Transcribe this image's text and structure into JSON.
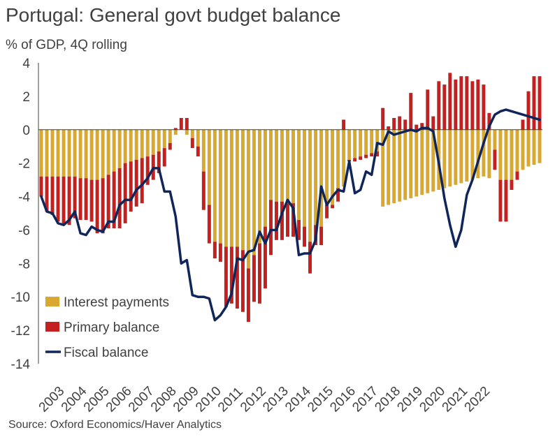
{
  "title": "Portugal: General govt budget balance",
  "subtitle": "% of GDP, 4Q rolling",
  "source": "Source: Oxford Economics/Haver Analytics",
  "colors": {
    "interest": "#D9A82E",
    "primary": "#C4201F",
    "fiscal": "#10265B",
    "axis": "#404040"
  },
  "chart_data": {
    "type": "bar",
    "stacked": true,
    "title": "Portugal: General govt budget balance",
    "ylabel": "% of GDP, 4Q rolling",
    "xlabel": "",
    "ylim": [
      -14,
      4
    ],
    "yticks": [
      4,
      2,
      0,
      -2,
      -4,
      -6,
      -8,
      -10,
      -12,
      -14
    ],
    "x_tick_labels": [
      "2003",
      "2004",
      "2005",
      "2006",
      "2007",
      "2008",
      "2009",
      "2010",
      "2011",
      "2012",
      "2013",
      "2014",
      "2015",
      "2016",
      "2017",
      "2018",
      "2019",
      "2020",
      "2021",
      "2022"
    ],
    "x_start_year": 2003,
    "quarters_per_year": 4,
    "legend": {
      "placement": "bottom-left",
      "entries": [
        "Interest payments",
        "Primary balance",
        "Fiscal balance"
      ]
    },
    "series": [
      {
        "name": "Interest payments",
        "kind": "bar",
        "values": [
          -2.8,
          -2.8,
          -2.8,
          -2.8,
          -2.8,
          -2.8,
          -2.8,
          -2.9,
          -2.9,
          -3.0,
          -3.0,
          -2.9,
          -2.7,
          -2.5,
          -2.3,
          -2.0,
          -1.9,
          -1.8,
          -1.7,
          -1.6,
          -1.5,
          -1.3,
          -1.1,
          -0.8,
          -0.3,
          0,
          -0.3,
          -0.5,
          -1.0,
          -2.5,
          -4.5,
          -6.7,
          -6.8,
          -7.0,
          -7.0,
          -7.0,
          -7.2,
          -8.3,
          -7.5,
          -6.8,
          -5.8,
          -4.2,
          -4.3,
          -4.3,
          -4.4,
          -4.4,
          -5.4,
          -5.8,
          -6.7,
          -5.7,
          -5.8,
          -4.5,
          -4.5,
          -3.5,
          -3.4,
          -1.8,
          -1.7,
          -1.6,
          -1.5,
          -1.4,
          -1.3,
          -4.6,
          -4.5,
          -4.4,
          -4.3,
          -4.2,
          -4.1,
          -4.0,
          -3.9,
          -3.8,
          -3.7,
          -3.6,
          -3.5,
          -3.4,
          -3.3,
          -3.2,
          -3.1,
          -3.0,
          -2.9,
          -2.8,
          -2.9,
          -1.2,
          -3.0,
          -3.0,
          -3.0,
          -2.5,
          -2.4,
          -2.2,
          -2.1,
          -2.0
        ]
      },
      {
        "name": "Primary balance",
        "kind": "bar",
        "values": [
          -1.2,
          -2.1,
          -2.3,
          -2.7,
          -2.9,
          -2.9,
          -2.5,
          -2.5,
          -2.5,
          -2.5,
          -3.2,
          -3.3,
          -3.2,
          -3.4,
          -3.6,
          -3.6,
          -3.0,
          -2.8,
          -2.7,
          -1.7,
          -1.5,
          -1.3,
          -1.1,
          -0.4,
          0.1,
          0.7,
          0.7,
          -0.6,
          -0.6,
          -2.3,
          -2.3,
          -1.0,
          -1.1,
          -3.6,
          -3.4,
          -3.7,
          -3.7,
          -3.2,
          -2.8,
          -3.6,
          -3.7,
          -3.3,
          -2.3,
          -2.3,
          -2.0,
          -2.0,
          -1.2,
          -1.2,
          -1.9,
          -1.2,
          -1.1,
          -0.8,
          -0.2,
          -0.8,
          0.6,
          -0.1,
          -0.2,
          -0.2,
          -0.2,
          -0.2,
          -0.3,
          1.3,
          0.2,
          0.7,
          0.8,
          0.6,
          2.2,
          0.3,
          0.4,
          2.4,
          0.8,
          2.9,
          2.7,
          3.4,
          3.0,
          3.2,
          3.2,
          2.9,
          3.0,
          2.7,
          1.0,
          -1.2,
          -2.5,
          -2.5,
          -0.6,
          -0.5,
          0.6,
          2.3,
          3.2,
          3.2
        ]
      },
      {
        "name": "Fiscal balance",
        "kind": "line",
        "values": [
          -4.0,
          -4.9,
          -5.0,
          -5.6,
          -5.7,
          -5.4,
          -4.9,
          -6.2,
          -6.3,
          -5.8,
          -6.0,
          -6.1,
          -5.5,
          -5.5,
          -4.5,
          -4.2,
          -4.2,
          -3.6,
          -3.3,
          -2.9,
          -2.3,
          -2.3,
          -3.7,
          -3.7,
          -5.2,
          -8.0,
          -7.8,
          -9.9,
          -10.0,
          -10.0,
          -10.1,
          -11.4,
          -11.1,
          -10.6,
          -9.8,
          -7.7,
          -7.8,
          -7.3,
          -7.2,
          -6.1,
          -6.8,
          -6.0,
          -6.0,
          -5.0,
          -4.2,
          -4.7,
          -7.5,
          -7.4,
          -7.4,
          -6.6,
          -3.4,
          -4.5,
          -4.0,
          -3.6,
          -3.7,
          -1.9,
          -3.8,
          -3.6,
          -2.5,
          -2.7,
          -0.8,
          -0.9,
          -0.1,
          -0.3,
          -0.2,
          -0.1,
          0,
          -0.1,
          0.1,
          0.1,
          -0.1,
          -2.0,
          -4.1,
          -5.7,
          -7.0,
          -6.0,
          -3.9,
          -3.0,
          -1.9,
          -0.8,
          0.2,
          0.9,
          1.1,
          1.2,
          1.1,
          1.0,
          0.9,
          0.8,
          0.7,
          0.6
        ]
      }
    ]
  }
}
